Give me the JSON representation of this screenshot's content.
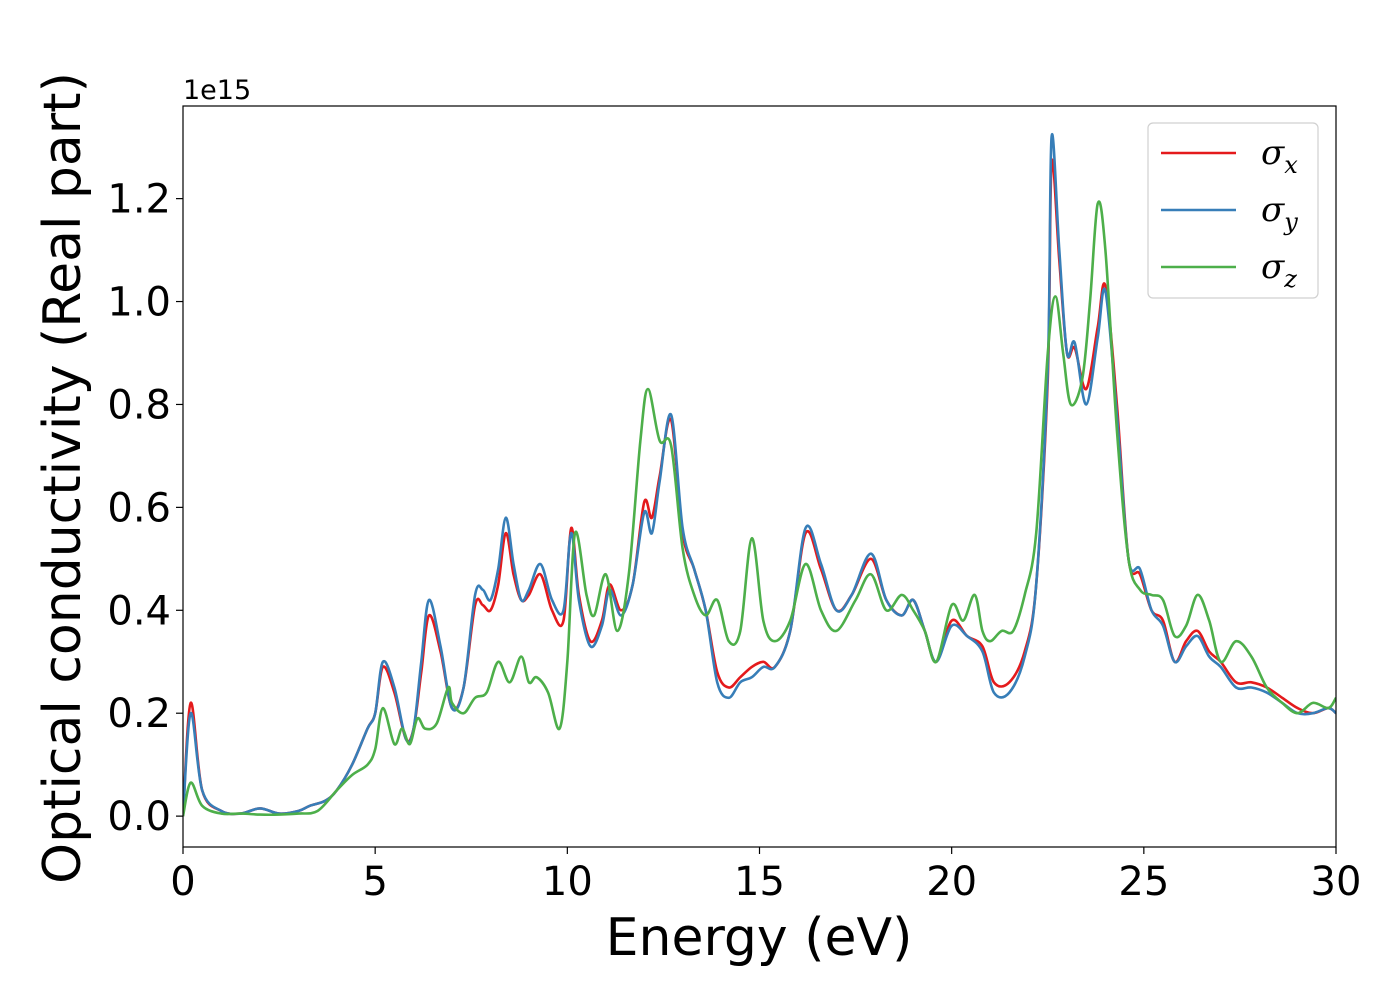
{
  "chart_data": {
    "type": "line",
    "title": "",
    "xlabel": "Energy (eV)",
    "ylabel": "Optical conductivity (Real part)",
    "y_offset_label": "1e15",
    "xlim": [
      0,
      30
    ],
    "ylim": [
      -0.06,
      1.38
    ],
    "xticks": [
      0,
      5,
      10,
      15,
      20,
      25,
      30
    ],
    "xtick_labels": [
      "0",
      "5",
      "10",
      "15",
      "20",
      "25",
      "30"
    ],
    "yticks": [
      0.0,
      0.2,
      0.4,
      0.6,
      0.8,
      1.0,
      1.2
    ],
    "ytick_labels": [
      "0.0",
      "0.2",
      "0.4",
      "0.6",
      "0.8",
      "1.0",
      "1.2"
    ],
    "grid": false,
    "legend_position": "top-right",
    "series": [
      {
        "name": "σx",
        "legend_base": "σ",
        "legend_sub": "x",
        "color": "#e41a1c",
        "x": [
          0,
          0.2,
          0.5,
          1.0,
          1.5,
          2.0,
          2.5,
          3.0,
          3.3,
          3.7,
          4.0,
          4.4,
          4.8,
          5.0,
          5.2,
          5.5,
          5.8,
          6.0,
          6.2,
          6.4,
          6.7,
          7.0,
          7.3,
          7.6,
          7.8,
          8.0,
          8.2,
          8.4,
          8.6,
          8.8,
          9.0,
          9.3,
          9.6,
          9.9,
          10.1,
          10.3,
          10.6,
          10.9,
          11.1,
          11.4,
          11.7,
          12.0,
          12.2,
          12.4,
          12.7,
          13.0,
          13.3,
          13.6,
          13.9,
          14.2,
          14.5,
          14.8,
          15.1,
          15.4,
          15.8,
          16.2,
          16.6,
          17.0,
          17.4,
          17.9,
          18.3,
          18.7,
          19.0,
          19.3,
          19.6,
          20.0,
          20.4,
          20.8,
          21.1,
          21.5,
          21.9,
          22.2,
          22.5,
          22.6,
          22.8,
          23.0,
          23.2,
          23.5,
          23.8,
          24.0,
          24.3,
          24.6,
          24.9,
          25.2,
          25.5,
          25.8,
          26.1,
          26.4,
          26.7,
          27.0,
          27.4,
          27.8,
          28.2,
          28.6,
          29.0,
          29.4,
          29.8,
          30.0
        ],
        "values": [
          0.0,
          0.22,
          0.05,
          0.01,
          0.005,
          0.015,
          0.005,
          0.01,
          0.02,
          0.03,
          0.05,
          0.1,
          0.17,
          0.2,
          0.29,
          0.24,
          0.15,
          0.17,
          0.28,
          0.39,
          0.32,
          0.21,
          0.25,
          0.41,
          0.41,
          0.4,
          0.45,
          0.55,
          0.47,
          0.42,
          0.43,
          0.47,
          0.4,
          0.38,
          0.56,
          0.43,
          0.34,
          0.38,
          0.45,
          0.4,
          0.45,
          0.61,
          0.58,
          0.66,
          0.77,
          0.55,
          0.48,
          0.4,
          0.28,
          0.25,
          0.27,
          0.29,
          0.3,
          0.29,
          0.36,
          0.55,
          0.48,
          0.4,
          0.43,
          0.5,
          0.42,
          0.39,
          0.42,
          0.36,
          0.3,
          0.38,
          0.35,
          0.33,
          0.26,
          0.26,
          0.32,
          0.45,
          0.85,
          1.27,
          1.08,
          0.9,
          0.91,
          0.83,
          0.95,
          1.03,
          0.8,
          0.5,
          0.47,
          0.4,
          0.38,
          0.3,
          0.34,
          0.36,
          0.32,
          0.3,
          0.26,
          0.26,
          0.25,
          0.23,
          0.21,
          0.2,
          0.21,
          0.2
        ]
      },
      {
        "name": "σy",
        "legend_base": "σ",
        "legend_sub": "y",
        "color": "#377eb8",
        "x": [
          0,
          0.2,
          0.5,
          1.0,
          1.5,
          2.0,
          2.5,
          3.0,
          3.3,
          3.7,
          4.0,
          4.4,
          4.8,
          5.0,
          5.2,
          5.5,
          5.8,
          6.0,
          6.2,
          6.4,
          6.7,
          7.0,
          7.3,
          7.6,
          7.8,
          8.0,
          8.2,
          8.4,
          8.6,
          8.8,
          9.0,
          9.3,
          9.6,
          9.9,
          10.1,
          10.3,
          10.6,
          10.9,
          11.1,
          11.4,
          11.7,
          12.0,
          12.2,
          12.4,
          12.7,
          13.0,
          13.3,
          13.6,
          13.9,
          14.2,
          14.5,
          14.8,
          15.1,
          15.4,
          15.8,
          16.2,
          16.6,
          17.0,
          17.4,
          17.9,
          18.3,
          18.7,
          19.0,
          19.3,
          19.6,
          20.0,
          20.4,
          20.8,
          21.1,
          21.5,
          21.9,
          22.2,
          22.5,
          22.6,
          22.8,
          23.0,
          23.2,
          23.5,
          23.8,
          24.0,
          24.3,
          24.6,
          24.9,
          25.2,
          25.5,
          25.8,
          26.1,
          26.4,
          26.7,
          27.0,
          27.4,
          27.8,
          28.2,
          28.6,
          29.0,
          29.4,
          29.8,
          30.0
        ],
        "values": [
          0.0,
          0.2,
          0.05,
          0.01,
          0.005,
          0.015,
          0.005,
          0.01,
          0.02,
          0.03,
          0.05,
          0.1,
          0.17,
          0.2,
          0.3,
          0.25,
          0.15,
          0.17,
          0.3,
          0.42,
          0.33,
          0.21,
          0.25,
          0.43,
          0.44,
          0.42,
          0.48,
          0.58,
          0.49,
          0.42,
          0.44,
          0.49,
          0.42,
          0.4,
          0.55,
          0.42,
          0.33,
          0.37,
          0.44,
          0.39,
          0.45,
          0.59,
          0.55,
          0.65,
          0.78,
          0.56,
          0.48,
          0.4,
          0.26,
          0.23,
          0.26,
          0.27,
          0.29,
          0.29,
          0.36,
          0.56,
          0.49,
          0.4,
          0.43,
          0.51,
          0.42,
          0.39,
          0.42,
          0.36,
          0.3,
          0.37,
          0.35,
          0.32,
          0.24,
          0.24,
          0.31,
          0.45,
          0.87,
          1.32,
          1.1,
          0.9,
          0.92,
          0.8,
          0.93,
          1.02,
          0.78,
          0.5,
          0.48,
          0.4,
          0.37,
          0.3,
          0.33,
          0.35,
          0.31,
          0.29,
          0.25,
          0.25,
          0.24,
          0.22,
          0.2,
          0.2,
          0.21,
          0.2
        ]
      },
      {
        "name": "σz",
        "legend_base": "σ",
        "legend_sub": "z",
        "color": "#4daf4a",
        "x": [
          0,
          0.2,
          0.5,
          1.0,
          1.5,
          2.0,
          2.5,
          3.0,
          3.5,
          4.0,
          4.4,
          4.8,
          5.0,
          5.2,
          5.5,
          5.7,
          5.9,
          6.1,
          6.3,
          6.6,
          6.9,
          7.0,
          7.3,
          7.6,
          7.9,
          8.2,
          8.5,
          8.8,
          9.0,
          9.2,
          9.5,
          9.8,
          10.0,
          10.2,
          10.5,
          10.7,
          11.0,
          11.3,
          11.6,
          11.9,
          12.1,
          12.4,
          12.7,
          13.0,
          13.3,
          13.6,
          13.9,
          14.2,
          14.5,
          14.8,
          15.1,
          15.4,
          15.8,
          16.2,
          16.6,
          17.0,
          17.5,
          17.9,
          18.3,
          18.7,
          19.0,
          19.3,
          19.6,
          20.0,
          20.3,
          20.6,
          20.8,
          21.0,
          21.3,
          21.6,
          21.9,
          22.2,
          22.5,
          22.7,
          22.9,
          23.1,
          23.4,
          23.6,
          23.8,
          24.0,
          24.3,
          24.6,
          24.9,
          25.2,
          25.5,
          25.8,
          26.1,
          26.4,
          26.7,
          27.0,
          27.4,
          27.8,
          28.2,
          28.6,
          29.0,
          29.4,
          29.8,
          30.0
        ],
        "values": [
          0.0,
          0.065,
          0.02,
          0.005,
          0.005,
          0.003,
          0.003,
          0.005,
          0.01,
          0.05,
          0.08,
          0.1,
          0.13,
          0.21,
          0.14,
          0.17,
          0.14,
          0.19,
          0.17,
          0.18,
          0.25,
          0.22,
          0.2,
          0.23,
          0.24,
          0.3,
          0.26,
          0.31,
          0.26,
          0.27,
          0.24,
          0.17,
          0.3,
          0.55,
          0.43,
          0.39,
          0.47,
          0.36,
          0.47,
          0.73,
          0.83,
          0.73,
          0.72,
          0.52,
          0.43,
          0.39,
          0.42,
          0.34,
          0.36,
          0.54,
          0.38,
          0.34,
          0.38,
          0.49,
          0.4,
          0.36,
          0.42,
          0.47,
          0.4,
          0.43,
          0.4,
          0.36,
          0.3,
          0.41,
          0.38,
          0.43,
          0.36,
          0.34,
          0.36,
          0.36,
          0.43,
          0.55,
          0.9,
          1.01,
          0.9,
          0.8,
          0.85,
          1.0,
          1.19,
          1.1,
          0.75,
          0.5,
          0.44,
          0.43,
          0.42,
          0.35,
          0.37,
          0.43,
          0.38,
          0.3,
          0.34,
          0.31,
          0.25,
          0.22,
          0.2,
          0.22,
          0.21,
          0.23
        ]
      }
    ]
  }
}
